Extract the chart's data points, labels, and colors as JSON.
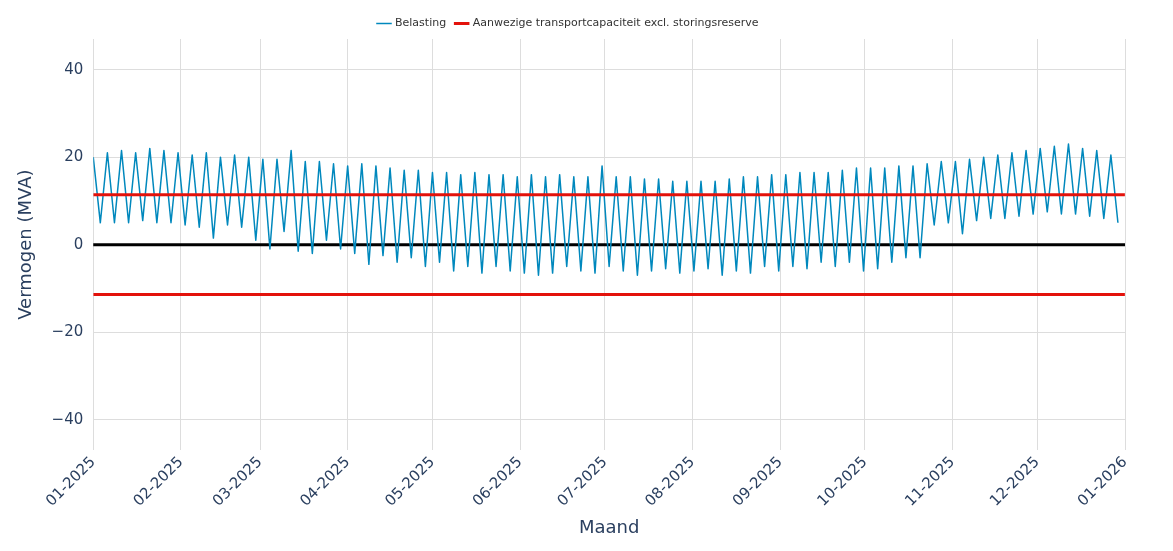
{
  "chart_data": {
    "type": "line",
    "xlabel": "Maand",
    "ylabel": "Vermogen (MVA)",
    "legend": "top",
    "grid": true,
    "marker": "none",
    "line_style": "solid",
    "xlim": [
      "2025-01-01",
      "2026-01-01"
    ],
    "xticks": [
      {
        "value": "2025-01-01",
        "label": "01-2025"
      },
      {
        "value": "2025-02-01",
        "label": "02-2025"
      },
      {
        "value": "2025-03-01",
        "label": "03-2025"
      },
      {
        "value": "2025-04-01",
        "label": "04-2025"
      },
      {
        "value": "2025-05-01",
        "label": "05-2025"
      },
      {
        "value": "2025-06-01",
        "label": "06-2025"
      },
      {
        "value": "2025-07-01",
        "label": "07-2025"
      },
      {
        "value": "2025-08-01",
        "label": "08-2025"
      },
      {
        "value": "2025-09-01",
        "label": "09-2025"
      },
      {
        "value": "2025-10-01",
        "label": "10-2025"
      },
      {
        "value": "2025-11-01",
        "label": "11-2025"
      },
      {
        "value": "2025-12-01",
        "label": "12-2025"
      },
      {
        "value": "2026-01-01",
        "label": "01-2026"
      }
    ],
    "ylim": [
      -47,
      47
    ],
    "yticks": [
      -40,
      -20,
      0,
      20,
      40
    ],
    "ref_lines": [
      {
        "axis": "y",
        "value": 0,
        "color": "#000000"
      }
    ],
    "series": [
      {
        "name": "Belasting",
        "color": "#0088bd",
        "x": [
          "2025-01-01T00:00",
          "2025-01-03T12:00",
          "2025-01-06T00:00",
          "2025-01-08T12:00",
          "2025-01-11T00:00",
          "2025-01-13T12:00",
          "2025-01-16T00:00",
          "2025-01-18T12:00",
          "2025-01-21T00:00",
          "2025-01-23T12:00",
          "2025-01-26T00:00",
          "2025-01-28T12:00",
          "2025-01-31T00:00",
          "2025-02-02T12:00",
          "2025-02-05T00:00",
          "2025-02-07T12:00",
          "2025-02-10T00:00",
          "2025-02-12T12:00",
          "2025-02-15T00:00",
          "2025-02-17T12:00",
          "2025-02-20T00:00",
          "2025-02-22T12:00",
          "2025-02-25T00:00",
          "2025-02-27T12:00",
          "2025-03-02T00:00",
          "2025-03-04T12:00",
          "2025-03-07T00:00",
          "2025-03-09T12:00",
          "2025-03-12T00:00",
          "2025-03-14T12:00",
          "2025-03-17T00:00",
          "2025-03-19T12:00",
          "2025-03-22T00:00",
          "2025-03-24T12:00",
          "2025-03-27T00:00",
          "2025-03-29T12:00",
          "2025-04-01T00:00",
          "2025-04-03T12:00",
          "2025-04-06T00:00",
          "2025-04-08T12:00",
          "2025-04-11T00:00",
          "2025-04-13T12:00",
          "2025-04-16T00:00",
          "2025-04-18T12:00",
          "2025-04-21T00:00",
          "2025-04-23T12:00",
          "2025-04-26T00:00",
          "2025-04-28T12:00",
          "2025-05-01T00:00",
          "2025-05-03T12:00",
          "2025-05-06T00:00",
          "2025-05-08T12:00",
          "2025-05-11T00:00",
          "2025-05-13T12:00",
          "2025-05-16T00:00",
          "2025-05-18T12:00",
          "2025-05-21T00:00",
          "2025-05-23T12:00",
          "2025-05-26T00:00",
          "2025-05-28T12:00",
          "2025-05-31T00:00",
          "2025-06-02T12:00",
          "2025-06-05T00:00",
          "2025-06-07T12:00",
          "2025-06-10T00:00",
          "2025-06-12T12:00",
          "2025-06-15T00:00",
          "2025-06-17T12:00",
          "2025-06-20T00:00",
          "2025-06-22T12:00",
          "2025-06-25T00:00",
          "2025-06-27T12:00",
          "2025-06-30T00:00",
          "2025-07-02T12:00",
          "2025-07-05T00:00",
          "2025-07-07T12:00",
          "2025-07-10T00:00",
          "2025-07-12T12:00",
          "2025-07-15T00:00",
          "2025-07-17T12:00",
          "2025-07-20T00:00",
          "2025-07-22T12:00",
          "2025-07-25T00:00",
          "2025-07-27T12:00",
          "2025-07-30T00:00",
          "2025-08-01T12:00",
          "2025-08-04T00:00",
          "2025-08-06T12:00",
          "2025-08-09T00:00",
          "2025-08-11T12:00",
          "2025-08-14T00:00",
          "2025-08-16T12:00",
          "2025-08-19T00:00",
          "2025-08-21T12:00",
          "2025-08-24T00:00",
          "2025-08-26T12:00",
          "2025-08-29T00:00",
          "2025-08-31T12:00",
          "2025-09-03T00:00",
          "2025-09-05T12:00",
          "2025-09-08T00:00",
          "2025-09-10T12:00",
          "2025-09-13T00:00",
          "2025-09-15T12:00",
          "2025-09-18T00:00",
          "2025-09-20T12:00",
          "2025-09-23T00:00",
          "2025-09-25T12:00",
          "2025-09-28T00:00",
          "2025-09-30T12:00",
          "2025-10-03T00:00",
          "2025-10-05T12:00",
          "2025-10-08T00:00",
          "2025-10-10T12:00",
          "2025-10-13T00:00",
          "2025-10-15T12:00",
          "2025-10-18T00:00",
          "2025-10-20T12:00",
          "2025-10-23T00:00",
          "2025-10-25T12:00",
          "2025-10-28T00:00",
          "2025-10-30T12:00",
          "2025-11-02T00:00",
          "2025-11-04T12:00",
          "2025-11-07T00:00",
          "2025-11-09T12:00",
          "2025-11-12T00:00",
          "2025-11-14T12:00",
          "2025-11-17T00:00",
          "2025-11-19T12:00",
          "2025-11-22T00:00",
          "2025-11-24T12:00",
          "2025-11-27T00:00",
          "2025-11-29T12:00",
          "2025-12-02T00:00",
          "2025-12-04T12:00",
          "2025-12-07T00:00",
          "2025-12-09T12:00",
          "2025-12-12T00:00",
          "2025-12-14T12:00",
          "2025-12-17T00:00",
          "2025-12-19T12:00",
          "2025-12-22T00:00",
          "2025-12-24T12:00",
          "2025-12-27T00:00",
          "2025-12-29T12:00"
        ],
        "values": [
          20,
          5,
          21,
          5,
          21.5,
          5,
          21,
          5.5,
          22,
          5,
          21.5,
          5,
          21,
          4.5,
          20.5,
          4,
          21,
          1.5,
          20,
          4.5,
          20.5,
          4,
          20,
          1,
          19.5,
          -1,
          19.5,
          3,
          21.5,
          -1.5,
          19,
          -2,
          19,
          1,
          18.5,
          -1,
          18,
          -2,
          18.5,
          -4.5,
          18,
          -2.5,
          17.5,
          -4,
          17,
          -3,
          17,
          -5,
          16.5,
          -4,
          16.5,
          -6,
          16,
          -5,
          16.5,
          -6.5,
          16,
          -5,
          16,
          -6,
          15.5,
          -6.5,
          16,
          -7,
          15.5,
          -6.5,
          16,
          -5,
          15.5,
          -6,
          15.5,
          -6.5,
          18,
          -5,
          15.5,
          -6,
          15.5,
          -7,
          15,
          -6,
          15,
          -5.5,
          14.5,
          -6.5,
          14.5,
          -6,
          14.5,
          -5.5,
          14.5,
          -7,
          15,
          -6,
          15.5,
          -6.5,
          15.5,
          -5,
          16,
          -6,
          16,
          -5,
          16.5,
          -5.5,
          16.5,
          -4,
          16.5,
          -5,
          17,
          -4,
          17.5,
          -6,
          17.5,
          -5.5,
          17.5,
          -4,
          18,
          -3,
          18,
          -3,
          18.5,
          4.5,
          19,
          5,
          19,
          2.5,
          19.5,
          5.5,
          20,
          6,
          20.5,
          6,
          21,
          6.5,
          21.5,
          7,
          22,
          7.5,
          22.5,
          7,
          23,
          7,
          22,
          6.5,
          21.5,
          6,
          20.5,
          5
        ]
      },
      {
        "name": "Aanwezige transportcapaciteit excl. storingsreserve",
        "color": "#e3120b",
        "x": [
          "2025-01-01T00:00",
          "2025-12-31T23:00"
        ],
        "values": [
          11.4,
          11.4
        ]
      },
      {
        "color": "#e3120b",
        "x": [
          "2025-01-01T00:00",
          "2025-12-31T23:00"
        ],
        "values": [
          -11.4,
          -11.4
        ]
      }
    ]
  }
}
